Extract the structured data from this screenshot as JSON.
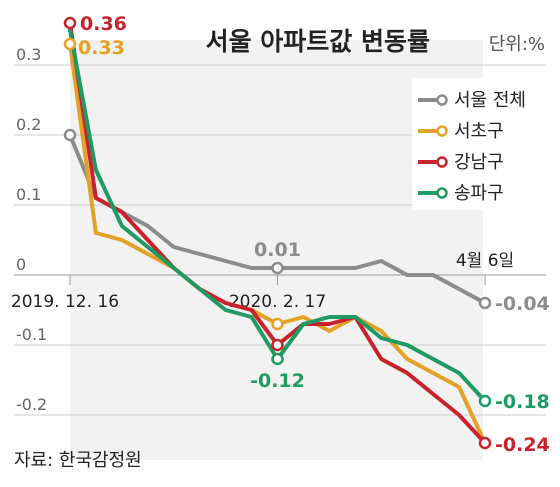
{
  "colors": {
    "seoul": "#8c8c8c",
    "seocho": "#e3a125",
    "gangnam": "#c8232c",
    "songpa": "#1f9a63",
    "gridline": "#cccccc",
    "text": "#333333",
    "axis_label": "#666666"
  },
  "chart_data": {
    "type": "line",
    "title": "서울 아파트값 변동률",
    "unit_label": "단위:%",
    "source": "자료: 한국감정원",
    "x_labels": [
      "2019. 12. 16",
      "2020. 2. 17",
      "4월 6일"
    ],
    "y_ticks": [
      0.3,
      0.2,
      0.1,
      0,
      -0.1,
      -0.2
    ],
    "y_tick_labels": [
      "0.3",
      "0.2",
      "0.1",
      "0",
      "-0.1",
      "-0.2"
    ],
    "ylim": [
      -0.25,
      0.38
    ],
    "weeks": 17,
    "legend": [
      "서울 전체",
      "서초구",
      "강남구",
      "송파구"
    ],
    "series": [
      {
        "name": "서울 전체",
        "color": "#8c8c8c",
        "values": [
          0.2,
          0.11,
          0.09,
          0.07,
          0.04,
          0.03,
          0.02,
          0.01,
          0.01,
          0.01,
          0.01,
          0.01,
          0.02,
          0.0,
          0.0,
          -0.02,
          -0.04
        ],
        "markers": [
          0,
          8,
          16
        ]
      },
      {
        "name": "서초구",
        "color": "#e3a125",
        "values": [
          0.33,
          0.06,
          0.05,
          0.03,
          0.01,
          -0.02,
          -0.04,
          -0.05,
          -0.07,
          -0.06,
          -0.08,
          -0.06,
          -0.08,
          -0.12,
          -0.14,
          -0.16,
          -0.24
        ],
        "markers": [
          0,
          8
        ]
      },
      {
        "name": "강남구",
        "color": "#c8232c",
        "values": [
          0.36,
          0.11,
          0.09,
          0.05,
          0.01,
          -0.02,
          -0.04,
          -0.05,
          -0.1,
          -0.07,
          -0.07,
          -0.06,
          -0.12,
          -0.14,
          -0.17,
          -0.2,
          -0.24
        ],
        "markers": [
          0,
          8,
          16
        ]
      },
      {
        "name": "송파구",
        "color": "#1f9a63",
        "values": [
          0.35,
          0.15,
          0.07,
          0.04,
          0.01,
          -0.02,
          -0.05,
          -0.06,
          -0.12,
          -0.07,
          -0.06,
          -0.06,
          -0.09,
          -0.1,
          -0.12,
          -0.14,
          -0.18
        ],
        "markers": [
          8,
          16
        ]
      }
    ],
    "annotations": [
      {
        "series": 2,
        "index": 0,
        "text": "0.36"
      },
      {
        "series": 1,
        "index": 0,
        "text": "0.33"
      },
      {
        "series": 0,
        "index": 8,
        "text": "0.01"
      },
      {
        "series": 3,
        "index": 8,
        "text": "-0.12"
      },
      {
        "series": 0,
        "index": 16,
        "text": "-0.04"
      },
      {
        "series": 3,
        "index": 16,
        "text": "-0.18"
      },
      {
        "series": 2,
        "index": 16,
        "text": "-0.24"
      }
    ],
    "grid": "horizontal"
  }
}
